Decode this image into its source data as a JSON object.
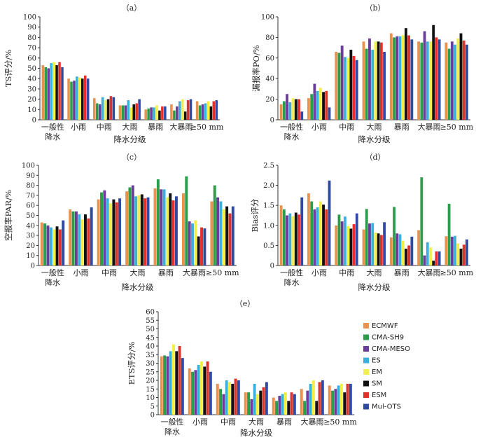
{
  "series_names": [
    "ECMWF",
    "CMA-SH9",
    "CMA-MESO",
    "ES",
    "EM",
    "SM",
    "ESM",
    "Mul-OTS"
  ],
  "colors": [
    "#e9924f",
    "#2a9e4a",
    "#6a3d9a",
    "#3ab0de",
    "#f1ef4a",
    "#111111",
    "#e5302a",
    "#2f4aa0"
  ],
  "category_lines": [
    [
      "一般性",
      "降水"
    ],
    [
      "小雨"
    ],
    [
      "中雨"
    ],
    [
      "大雨"
    ],
    [
      "暴雨"
    ],
    [
      "大暴雨"
    ],
    [
      "≥50 mm"
    ]
  ],
  "chart_data": [
    {
      "type": "bar",
      "panel_label": "（a）",
      "ylabel": "TS评分/%",
      "xlabel": "降水分级",
      "ylim": [
        0,
        100
      ],
      "yticks": [
        0,
        10,
        20,
        30,
        40,
        50,
        60,
        70,
        80,
        90,
        100
      ],
      "categories": [
        "一般性降水",
        "小雨",
        "中雨",
        "大雨",
        "暴雨",
        "大暴雨",
        "≥50 mm"
      ],
      "series": [
        {
          "name": "ECMWF",
          "values": [
            53,
            40,
            21,
            14,
            10,
            15,
            18
          ]
        },
        {
          "name": "CMA-SH9",
          "values": [
            51,
            37,
            16,
            14,
            11,
            9,
            14
          ]
        },
        {
          "name": "CMA-MESO",
          "values": [
            50,
            38,
            15,
            14,
            12,
            13,
            15
          ]
        },
        {
          "name": "ES",
          "values": [
            55,
            42,
            22,
            19,
            12,
            18,
            16
          ]
        },
        {
          "name": "EM",
          "values": [
            56,
            41,
            19,
            12,
            14,
            20,
            18
          ]
        },
        {
          "name": "SM",
          "values": [
            53,
            40,
            20,
            15,
            9,
            8,
            13
          ]
        },
        {
          "name": "ESM",
          "values": [
            56,
            43,
            23,
            16,
            13,
            19,
            18
          ]
        },
        {
          "name": "Mul-OTS",
          "values": [
            51,
            40,
            22,
            20,
            13,
            20,
            19
          ]
        }
      ]
    },
    {
      "type": "bar",
      "panel_label": "（b）",
      "ylabel": "漏报率PO/%",
      "xlabel": "降水分级",
      "ylim": [
        0,
        100
      ],
      "yticks": [
        0,
        20,
        40,
        60,
        80,
        100
      ],
      "categories": [
        "一般性降水",
        "小雨",
        "中雨",
        "大雨",
        "暴雨",
        "大暴雨",
        "≥50 mm"
      ],
      "series": [
        {
          "name": "ECMWF",
          "values": [
            15,
            21,
            66,
            76,
            84,
            76,
            75
          ]
        },
        {
          "name": "CMA-SH9",
          "values": [
            18,
            25,
            65,
            69,
            80,
            75,
            69
          ]
        },
        {
          "name": "CMA-MESO",
          "values": [
            25,
            35,
            72,
            79,
            81,
            86,
            76
          ]
        },
        {
          "name": "ES",
          "values": [
            17,
            28,
            61,
            68,
            81,
            76,
            73
          ]
        },
        {
          "name": "EM",
          "values": [
            21,
            31,
            60,
            76,
            82,
            76,
            79
          ]
        },
        {
          "name": "SM",
          "values": [
            20,
            27,
            68,
            76,
            89,
            92,
            84
          ]
        },
        {
          "name": "ESM",
          "values": [
            20,
            28,
            62,
            75,
            82,
            80,
            77
          ]
        },
        {
          "name": "Mul-OTS",
          "values": [
            8,
            12,
            58,
            66,
            78,
            78,
            73
          ]
        }
      ]
    },
    {
      "type": "bar",
      "panel_label": "（c）",
      "ylabel": "空报率PAR/%",
      "xlabel": "降水分级",
      "ylim": [
        0,
        100
      ],
      "yticks": [
        0,
        10,
        20,
        30,
        40,
        50,
        60,
        70,
        80,
        90,
        100
      ],
      "categories": [
        "一般性降水",
        "小雨",
        "中雨",
        "大雨",
        "暴雨",
        "大暴雨",
        "≥50 mm"
      ],
      "series": [
        {
          "name": "ECMWF",
          "values": [
            43,
            56,
            66,
            74,
            77,
            72,
            64
          ]
        },
        {
          "name": "CMA-SH9",
          "values": [
            42,
            54,
            73,
            78,
            86,
            89,
            80
          ]
        },
        {
          "name": "CMA-MESO",
          "values": [
            40,
            54,
            75,
            80,
            76,
            44,
            68
          ]
        },
        {
          "name": "ES",
          "values": [
            38,
            51,
            67,
            69,
            76,
            42,
            64
          ]
        },
        {
          "name": "EM",
          "values": [
            36,
            46,
            62,
            70,
            68,
            45,
            56
          ]
        },
        {
          "name": "SM",
          "values": [
            39,
            51,
            66,
            71,
            72,
            29,
            59
          ]
        },
        {
          "name": "ESM",
          "values": [
            36,
            47,
            63,
            67,
            65,
            38,
            52
          ]
        },
        {
          "name": "Mul-OTS",
          "values": [
            45,
            58,
            67,
            68,
            69,
            37,
            59
          ]
        }
      ]
    },
    {
      "type": "bar",
      "panel_label": "（d）",
      "ylabel": "Bias评分",
      "xlabel": "降水分级",
      "ylim": [
        0,
        2.5
      ],
      "yticks": [
        "0",
        "0.5",
        "1.0",
        "1.5",
        "2.0",
        "2.5"
      ],
      "categories": [
        "一般性降水",
        "小雨",
        "中雨",
        "大雨",
        "暴雨",
        "大暴雨",
        "≥50 mm"
      ],
      "series": [
        {
          "name": "ECMWF",
          "values": [
            1.5,
            1.8,
            1.0,
            0.9,
            0.7,
            0.88,
            0.73
          ]
        },
        {
          "name": "CMA-SH9",
          "values": [
            1.4,
            1.6,
            1.27,
            1.41,
            1.46,
            2.2,
            1.54
          ]
        },
        {
          "name": "CMA-MESO",
          "values": [
            1.25,
            1.4,
            1.1,
            1.05,
            0.8,
            0.25,
            0.72
          ]
        },
        {
          "name": "ES",
          "values": [
            1.3,
            1.45,
            1.22,
            1.06,
            0.78,
            0.58,
            0.74
          ]
        },
        {
          "name": "EM",
          "values": [
            1.23,
            1.6,
            0.98,
            0.82,
            0.62,
            0.45,
            0.55
          ]
        },
        {
          "name": "SM",
          "values": [
            1.32,
            1.52,
            0.92,
            0.8,
            0.42,
            0.12,
            0.42
          ]
        },
        {
          "name": "ESM",
          "values": [
            1.27,
            1.4,
            1.03,
            0.76,
            0.5,
            0.35,
            0.52
          ]
        },
        {
          "name": "Mul-OTS",
          "values": [
            1.7,
            2.12,
            1.3,
            1.08,
            0.72,
            0.35,
            0.65
          ]
        }
      ]
    },
    {
      "type": "bar",
      "panel_label": "（e）",
      "ylabel": "ETS评分/%",
      "xlabel": "降水分级",
      "ylim": [
        0,
        60
      ],
      "yticks": [
        0,
        5,
        10,
        15,
        20,
        25,
        30,
        35,
        40,
        45,
        50,
        55,
        60
      ],
      "categories": [
        "一般性降水",
        "小雨",
        "中雨",
        "大雨",
        "暴雨",
        "大暴雨",
        "≥50 mm"
      ],
      "series": [
        {
          "name": "ECMWF",
          "values": [
            34,
            27,
            18,
            13,
            10,
            15,
            17
          ]
        },
        {
          "name": "CMA-SH9",
          "values": [
            34.5,
            25,
            15,
            13,
            8,
            8,
            14
          ]
        },
        {
          "name": "CMA-MESO",
          "values": [
            34,
            26,
            12,
            9,
            11,
            14,
            15
          ]
        },
        {
          "name": "ES",
          "values": [
            37,
            29,
            20,
            18,
            12,
            18,
            17
          ]
        },
        {
          "name": "EM",
          "values": [
            41,
            31,
            19,
            12,
            13,
            20,
            18
          ]
        },
        {
          "name": "SM",
          "values": [
            37,
            28,
            18,
            14,
            8,
            8,
            13
          ]
        },
        {
          "name": "ESM",
          "values": [
            40,
            31,
            21,
            16,
            13,
            19,
            18
          ]
        },
        {
          "name": "Mul-OTS",
          "values": [
            33,
            25,
            20,
            19,
            12,
            20,
            18
          ]
        }
      ]
    }
  ]
}
